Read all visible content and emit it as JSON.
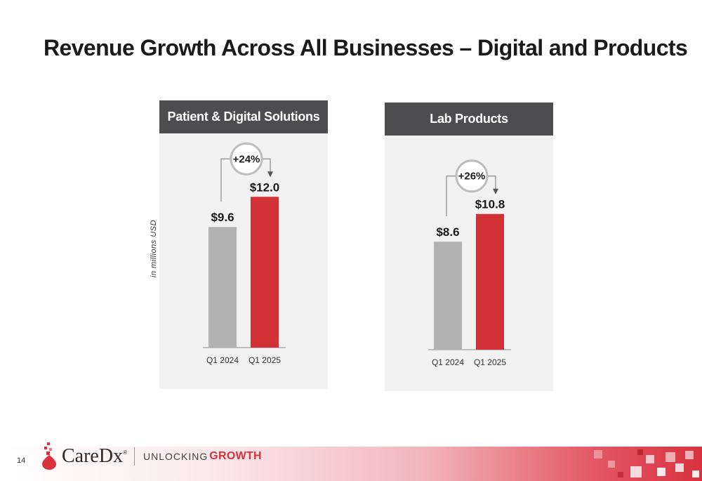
{
  "slide": {
    "title": "Revenue Growth Across All Businesses – Digital and Products",
    "units_label": "in millions USD",
    "page_number": "14"
  },
  "brand": {
    "logo_text": "CareDx",
    "logo_mark": "®",
    "tagline_prefix": "UNLOCKING",
    "tagline_suffix": "GROWTH",
    "accent_color": "#d9323f"
  },
  "chart_data": [
    {
      "type": "bar",
      "title": "Patient & Digital Solutions",
      "categories": [
        "Q1 2024",
        "Q1 2025"
      ],
      "values": [
        9.6,
        12.0
      ],
      "value_labels": [
        "$9.6",
        "$12.0"
      ],
      "growth_label": "+24%",
      "colors": [
        "#b3b3b3",
        "#d23236"
      ],
      "ylim": [
        0,
        19
      ],
      "grid": false
    },
    {
      "type": "bar",
      "title": "Lab Products",
      "categories": [
        "Q1 2024",
        "Q1 2025"
      ],
      "values": [
        8.6,
        10.8
      ],
      "value_labels": [
        "$8.6",
        "$10.8"
      ],
      "growth_label": "+26%",
      "colors": [
        "#b3b3b3",
        "#d23236"
      ],
      "ylim": [
        0,
        19
      ],
      "grid": false
    }
  ]
}
